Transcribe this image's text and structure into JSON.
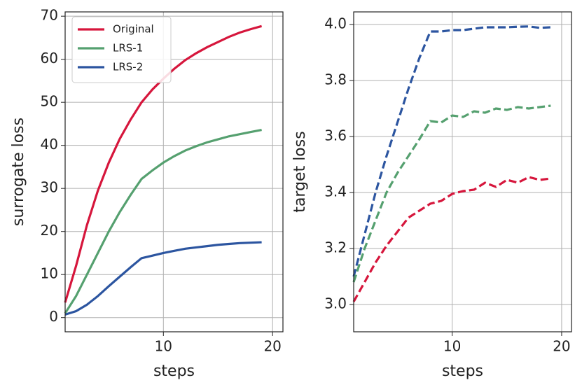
{
  "chart_data": [
    {
      "type": "line",
      "xlabel": "steps",
      "ylabel": "surrogate loss",
      "x": [
        1,
        2,
        3,
        4,
        5,
        6,
        7,
        8,
        9,
        10,
        11,
        12,
        13,
        14,
        15,
        16,
        17,
        18,
        19
      ],
      "xlim": [
        1,
        20.95
      ],
      "xticks": [
        10,
        20
      ],
      "ylim": [
        -3.3,
        71
      ],
      "yticks": [
        0,
        10,
        20,
        30,
        40,
        50,
        60,
        70
      ],
      "grid": true,
      "legend": "upper left",
      "linestyle": "solid",
      "series": [
        {
          "name": "Original",
          "color": "#d6163c",
          "values": [
            3.5,
            12,
            21.5,
            29.5,
            36,
            41.5,
            46,
            50,
            53,
            55.5,
            57.8,
            59.8,
            61.4,
            62.8,
            64,
            65.2,
            66.2,
            67,
            67.7
          ]
        },
        {
          "name": "LRS-1",
          "color": "#55a06f",
          "values": [
            1,
            5,
            10,
            15,
            20,
            24.5,
            28.5,
            32.2,
            34.2,
            36,
            37.5,
            38.8,
            39.8,
            40.7,
            41.4,
            42.1,
            42.6,
            43.1,
            43.6
          ]
        },
        {
          "name": "LRS-2",
          "color": "#2c55a0",
          "values": [
            0.7,
            1.5,
            3,
            5,
            7.3,
            9.5,
            11.7,
            13.8,
            14.4,
            15,
            15.5,
            16,
            16.3,
            16.6,
            16.9,
            17.1,
            17.3,
            17.4,
            17.5
          ]
        }
      ]
    },
    {
      "type": "line",
      "xlabel": "steps",
      "ylabel": "target loss",
      "x": [
        1,
        2,
        3,
        4,
        5,
        6,
        7,
        8,
        9,
        10,
        11,
        12,
        13,
        14,
        15,
        16,
        17,
        18,
        19
      ],
      "xlim": [
        1,
        20.9
      ],
      "xticks": [
        10,
        20
      ],
      "ylim": [
        2.9025,
        4.045
      ],
      "yticks": [
        {
          "value": 3.0,
          "label": "3.0"
        },
        3.2,
        3.4,
        3.6,
        3.8,
        {
          "value": 4.0,
          "label": "4.0"
        }
      ],
      "grid": true,
      "linestyle": "dashed",
      "series": [
        {
          "color": "#2c55a0",
          "values": [
            3.1,
            3.25,
            3.4,
            3.53,
            3.65,
            3.77,
            3.88,
            3.975,
            3.975,
            3.98,
            3.98,
            3.985,
            3.99,
            3.99,
            3.99,
            3.992,
            3.993,
            3.988,
            3.99
          ]
        },
        {
          "color": "#55a06f",
          "values": [
            3.08,
            3.2,
            3.3,
            3.4,
            3.47,
            3.53,
            3.59,
            3.655,
            3.65,
            3.675,
            3.67,
            3.69,
            3.685,
            3.7,
            3.695,
            3.705,
            3.7,
            3.705,
            3.71
          ]
        },
        {
          "color": "#d6163c",
          "values": [
            3.01,
            3.08,
            3.15,
            3.21,
            3.26,
            3.31,
            3.335,
            3.36,
            3.37,
            3.395,
            3.405,
            3.41,
            3.435,
            3.42,
            3.445,
            3.435,
            3.455,
            3.445,
            3.45
          ]
        }
      ]
    }
  ]
}
